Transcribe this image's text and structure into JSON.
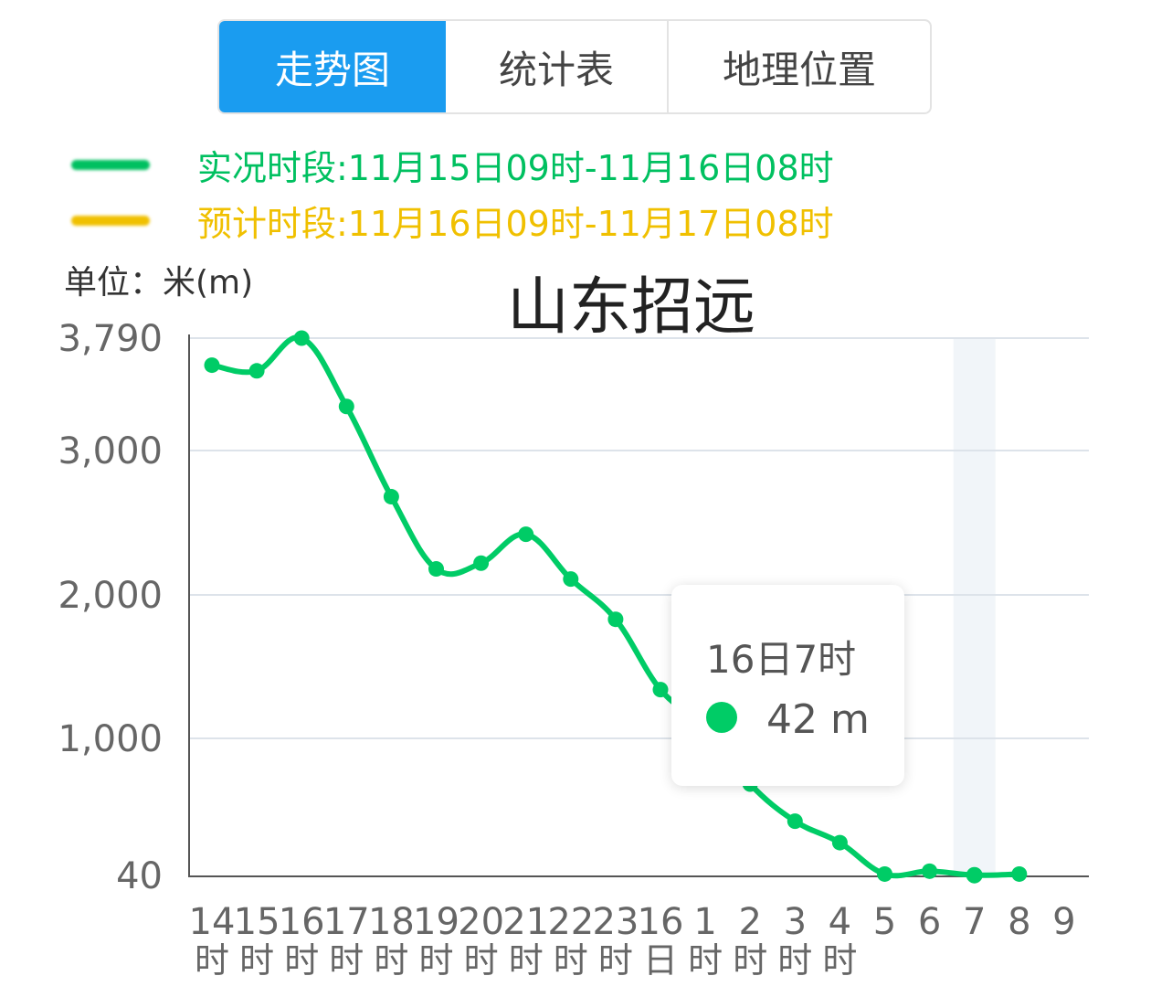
{
  "tabs": [
    {
      "label": "走势图",
      "active": true
    },
    {
      "label": "统计表",
      "active": false
    },
    {
      "label": "地理位置",
      "active": false
    }
  ],
  "legend": {
    "observed": {
      "text": "实况时段:11月15日09时-11月16日08时",
      "color": "#00c060"
    },
    "forecast": {
      "text": "预计时段:11月16日09时-11月17日08时",
      "color": "#f0c000"
    }
  },
  "unit_label": "单位：米(m)",
  "chart_data": {
    "type": "line",
    "title": "山东招远",
    "y_axis": {
      "ticks": [
        40,
        1000,
        2000,
        3000,
        3790
      ],
      "tick_labels": [
        "40",
        "1,000",
        "2,000",
        "3,000",
        "3,790"
      ],
      "range": [
        40,
        3790
      ]
    },
    "x_axis": {
      "tick_labels": [
        [
          "14",
          "时"
        ],
        [
          "15",
          "时"
        ],
        [
          "16",
          "时"
        ],
        [
          "17",
          "时"
        ],
        [
          "18",
          "时"
        ],
        [
          "19",
          "时"
        ],
        [
          "20",
          "时"
        ],
        [
          "21",
          "时"
        ],
        [
          "22",
          "时"
        ],
        [
          "23",
          "时"
        ],
        [
          "16",
          "日"
        ],
        [
          "1",
          "时"
        ],
        [
          "2",
          "时"
        ],
        [
          "3",
          "时"
        ],
        [
          "4",
          "时"
        ],
        [
          "5",
          ""
        ],
        [
          "6",
          ""
        ],
        [
          "7",
          ""
        ],
        [
          "8",
          ""
        ],
        [
          "9",
          ""
        ]
      ]
    },
    "series": [
      {
        "values": [
          3600,
          3560,
          3790,
          3310,
          2680,
          2180,
          2220,
          2420,
          2110,
          1830,
          1340,
          1080,
          680,
          420,
          270,
          50,
          70,
          42,
          50
        ],
        "color": "#00cc66"
      }
    ],
    "highlight_index": 17,
    "grid": true
  },
  "tooltip": {
    "time": "16日7时",
    "value": "42 m",
    "dot_color": "#00cc66"
  }
}
